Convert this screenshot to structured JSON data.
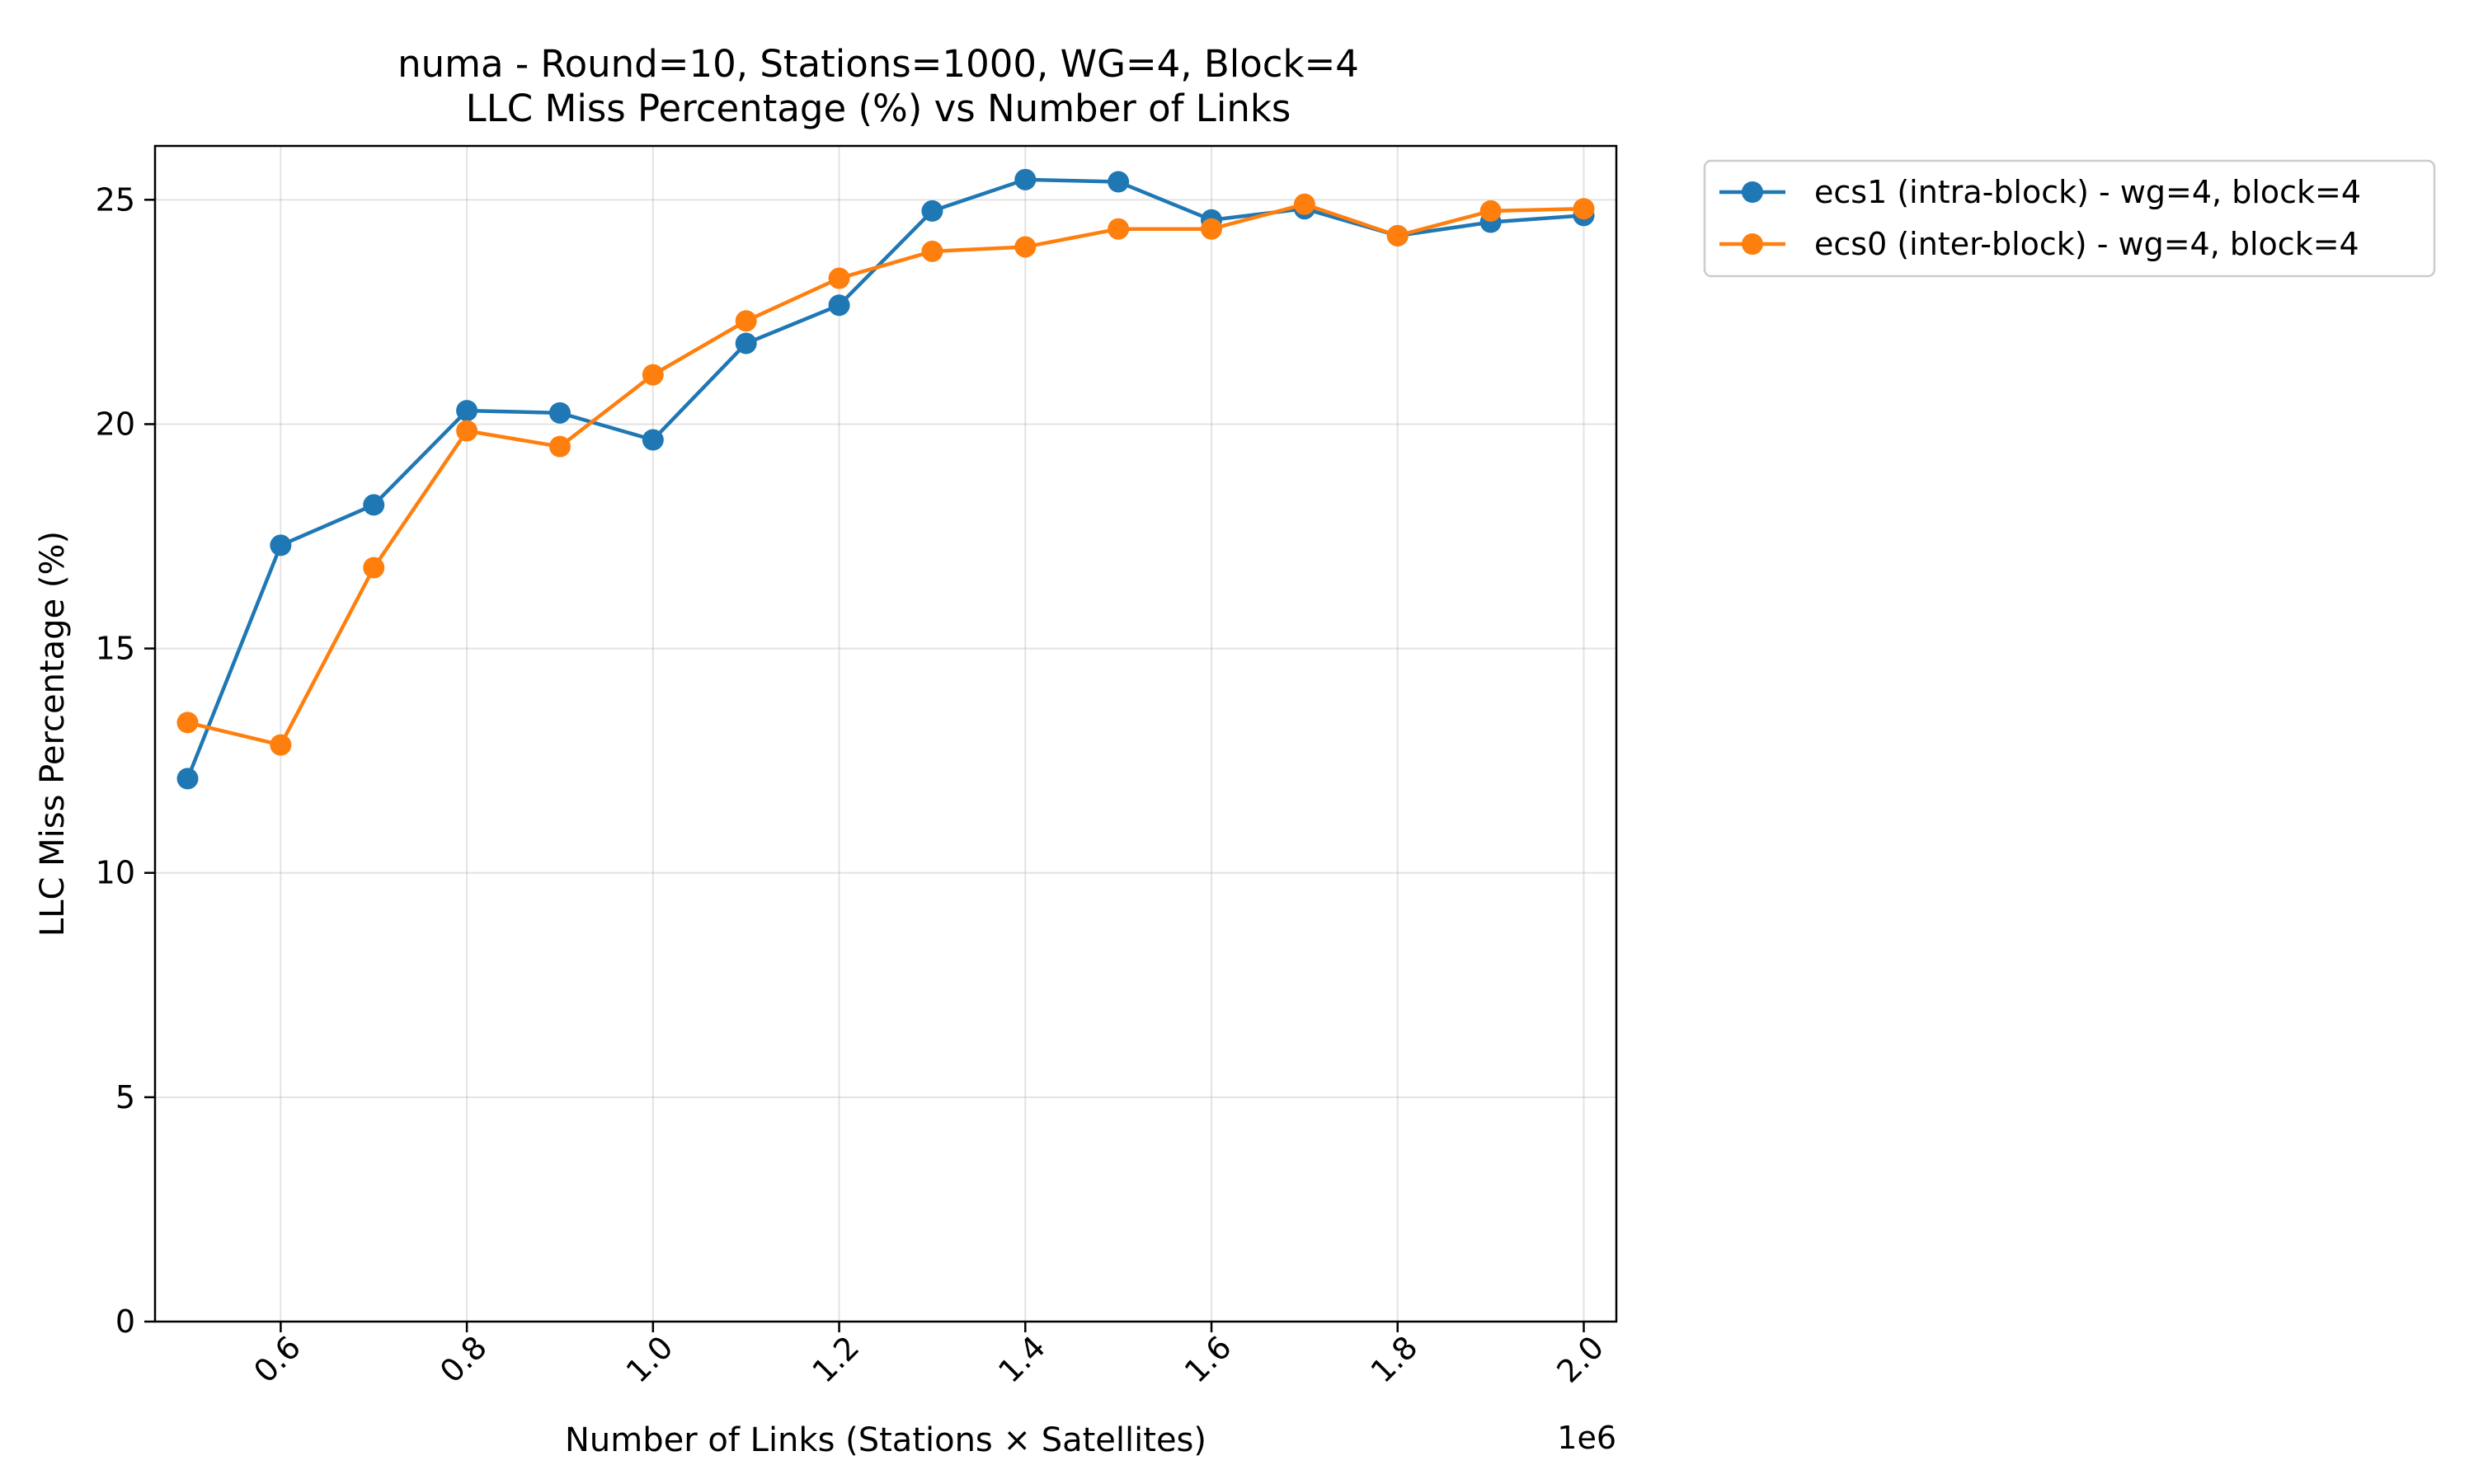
{
  "chart_data": {
    "type": "line",
    "title": "numa - Round=10, Stations=1000, WG=4, Block=4",
    "subtitle": "LLC Miss Percentage (%) vs Number of Links",
    "xlabel": "Number of Links (Stations × Satellites)",
    "ylabel": "LLC Miss Percentage (%)",
    "x_offset_label": "1e6",
    "xlim": [
      0.465,
      2.035
    ],
    "ylim": [
      0,
      26.2
    ],
    "x_scale": 1000000,
    "x_ticks": [
      0.6,
      0.8,
      1.0,
      1.2,
      1.4,
      1.6,
      1.8,
      2.0
    ],
    "x_tick_labels": [
      "0.6",
      "0.8",
      "1.0",
      "1.2",
      "1.4",
      "1.6",
      "1.8",
      "2.0"
    ],
    "y_ticks": [
      0,
      5,
      10,
      15,
      20,
      25
    ],
    "y_tick_labels": [
      "0",
      "5",
      "10",
      "15",
      "20",
      "25"
    ],
    "grid": true,
    "legend_position": "outside top-right",
    "x": [
      0.5,
      0.6,
      0.7,
      0.8,
      0.9,
      1.0,
      1.1,
      1.2,
      1.3,
      1.4,
      1.5,
      1.6,
      1.7,
      1.8,
      1.9,
      2.0
    ],
    "series": [
      {
        "name": "ecs1 (intra-block) - wg=4, block=4",
        "color": "#1f77b4",
        "values": [
          12.1,
          17.3,
          18.2,
          20.3,
          20.25,
          19.65,
          21.8,
          22.65,
          24.75,
          25.45,
          25.4,
          24.55,
          24.8,
          24.2,
          24.5,
          24.65
        ]
      },
      {
        "name": "ecs0 (inter-block) - wg=4, block=4",
        "color": "#ff7f0e",
        "values": [
          13.35,
          12.85,
          16.8,
          19.85,
          19.5,
          21.1,
          22.3,
          23.25,
          23.85,
          23.95,
          24.35,
          24.35,
          24.9,
          24.2,
          24.75,
          24.8
        ]
      }
    ]
  }
}
